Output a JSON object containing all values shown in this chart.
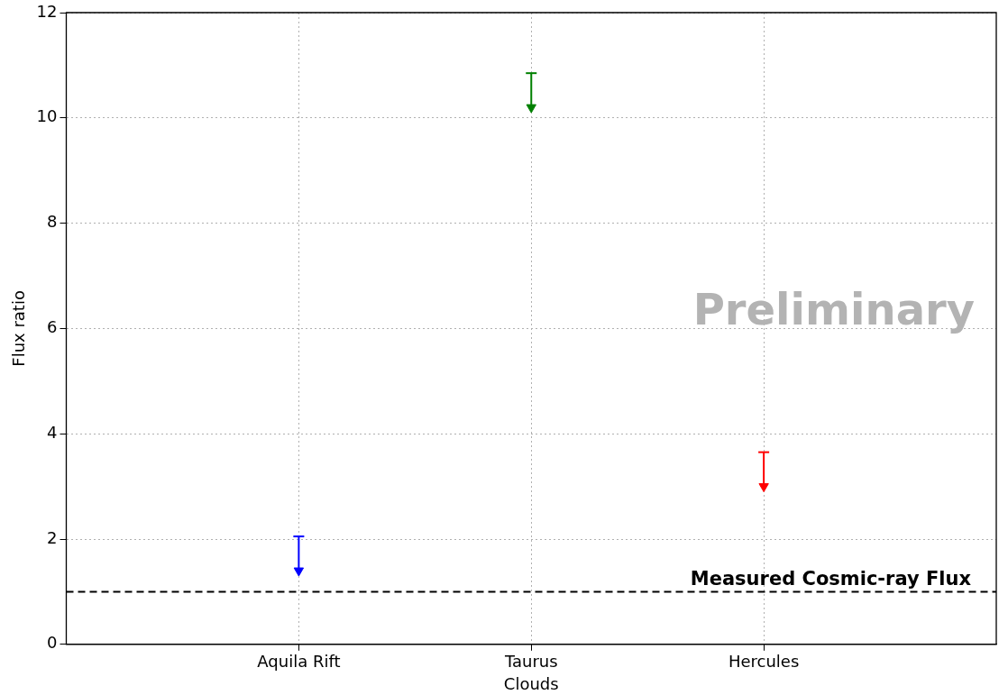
{
  "chart_data": {
    "type": "scatter",
    "xlabel": "Clouds",
    "ylabel": "Flux ratio",
    "categories": [
      "Aquila Rift",
      "Taurus",
      "Hercules"
    ],
    "values": [
      1.4,
      10.2,
      3.0
    ],
    "errors": [
      [
        1.4,
        2.05
      ],
      [
        10.2,
        10.85
      ],
      [
        3.0,
        3.65
      ]
    ],
    "colors": [
      "#0000ff",
      "#008000",
      "#ff0000"
    ],
    "marker": "triangle",
    "ylim": [
      0,
      12
    ],
    "yticks": [
      0,
      2,
      4,
      6,
      8,
      10,
      12
    ],
    "grid": true,
    "legend": false,
    "ref_lines": [
      {
        "axis": "y",
        "value": 1,
        "label": "Measured Cosmic-ray Flux",
        "color": "#000000",
        "line_style": "dashed"
      }
    ],
    "annotations": [
      "Preliminary"
    ]
  }
}
